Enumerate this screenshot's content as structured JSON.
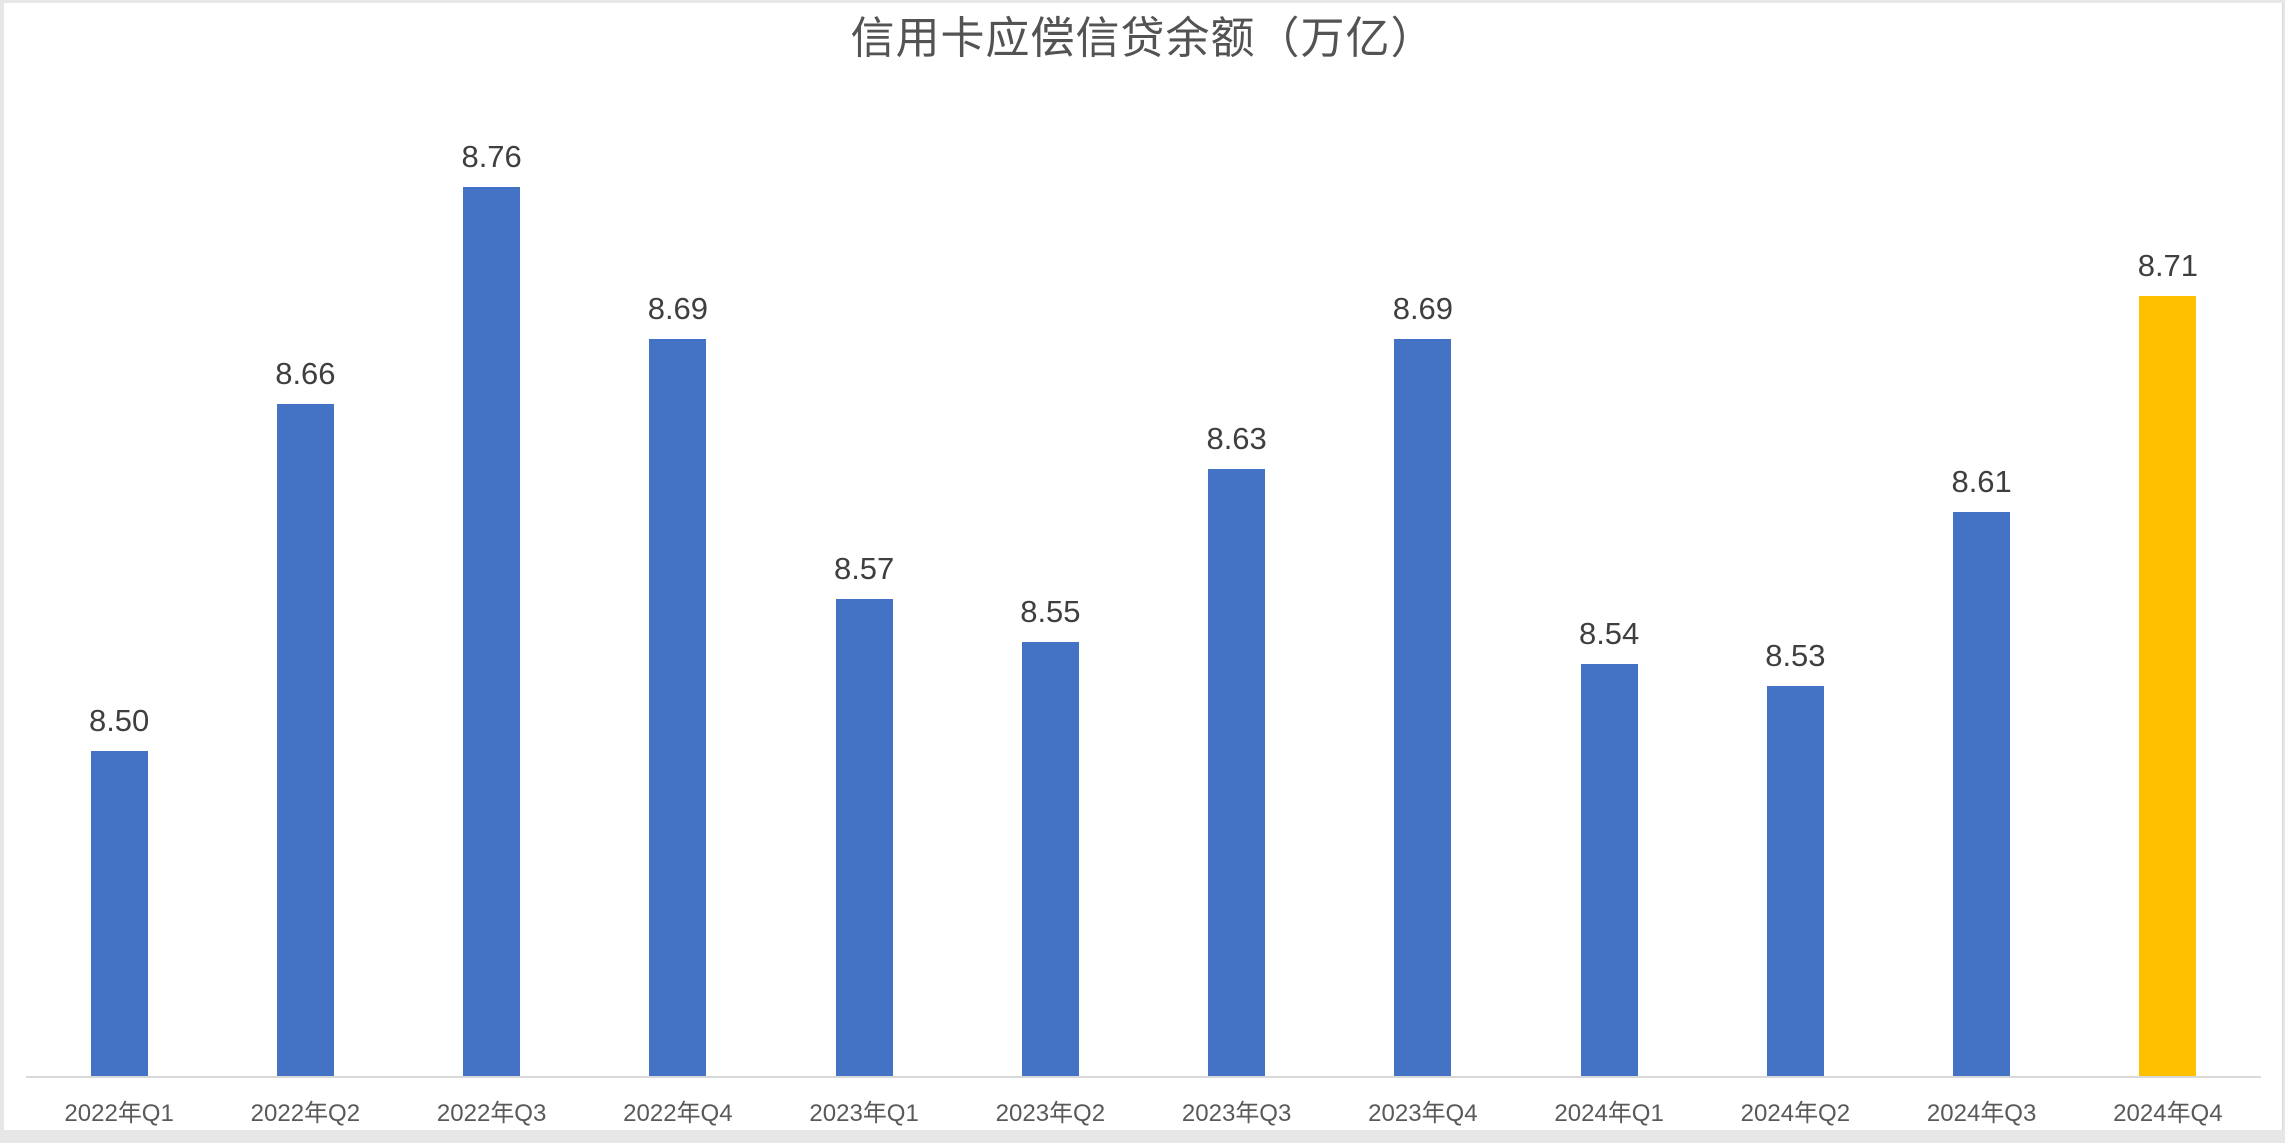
{
  "chart_data": {
    "type": "bar",
    "title": "信用卡应偿信贷余额（万亿）",
    "categories": [
      "2022年Q1",
      "2022年Q2",
      "2022年Q3",
      "2022年Q4",
      "2023年Q1",
      "2023年Q2",
      "2023年Q3",
      "2023年Q4",
      "2024年Q1",
      "2024年Q2",
      "2024年Q3",
      "2024年Q4"
    ],
    "values": [
      8.5,
      8.66,
      8.76,
      8.69,
      8.57,
      8.55,
      8.63,
      8.69,
      8.54,
      8.53,
      8.61,
      8.71
    ],
    "value_labels": [
      "8.50",
      "8.66",
      "8.76",
      "8.69",
      "8.57",
      "8.55",
      "8.63",
      "8.69",
      "8.54",
      "8.53",
      "8.61",
      "8.71"
    ],
    "highlight_index": 11,
    "xlabel": "",
    "ylabel": "",
    "ylim": [
      8.35,
      8.845
    ],
    "grid": false,
    "legend": "none",
    "colors": {
      "bar": "#4472C4",
      "highlight_bar": "#FFC000",
      "axis_line": "#D9D9D9",
      "value_label_text": "#3F3F3F",
      "axis_label_text": "#595959",
      "title_text": "#535353",
      "background": "#FFFFFF",
      "frame_band": "#E7E7E7"
    }
  }
}
